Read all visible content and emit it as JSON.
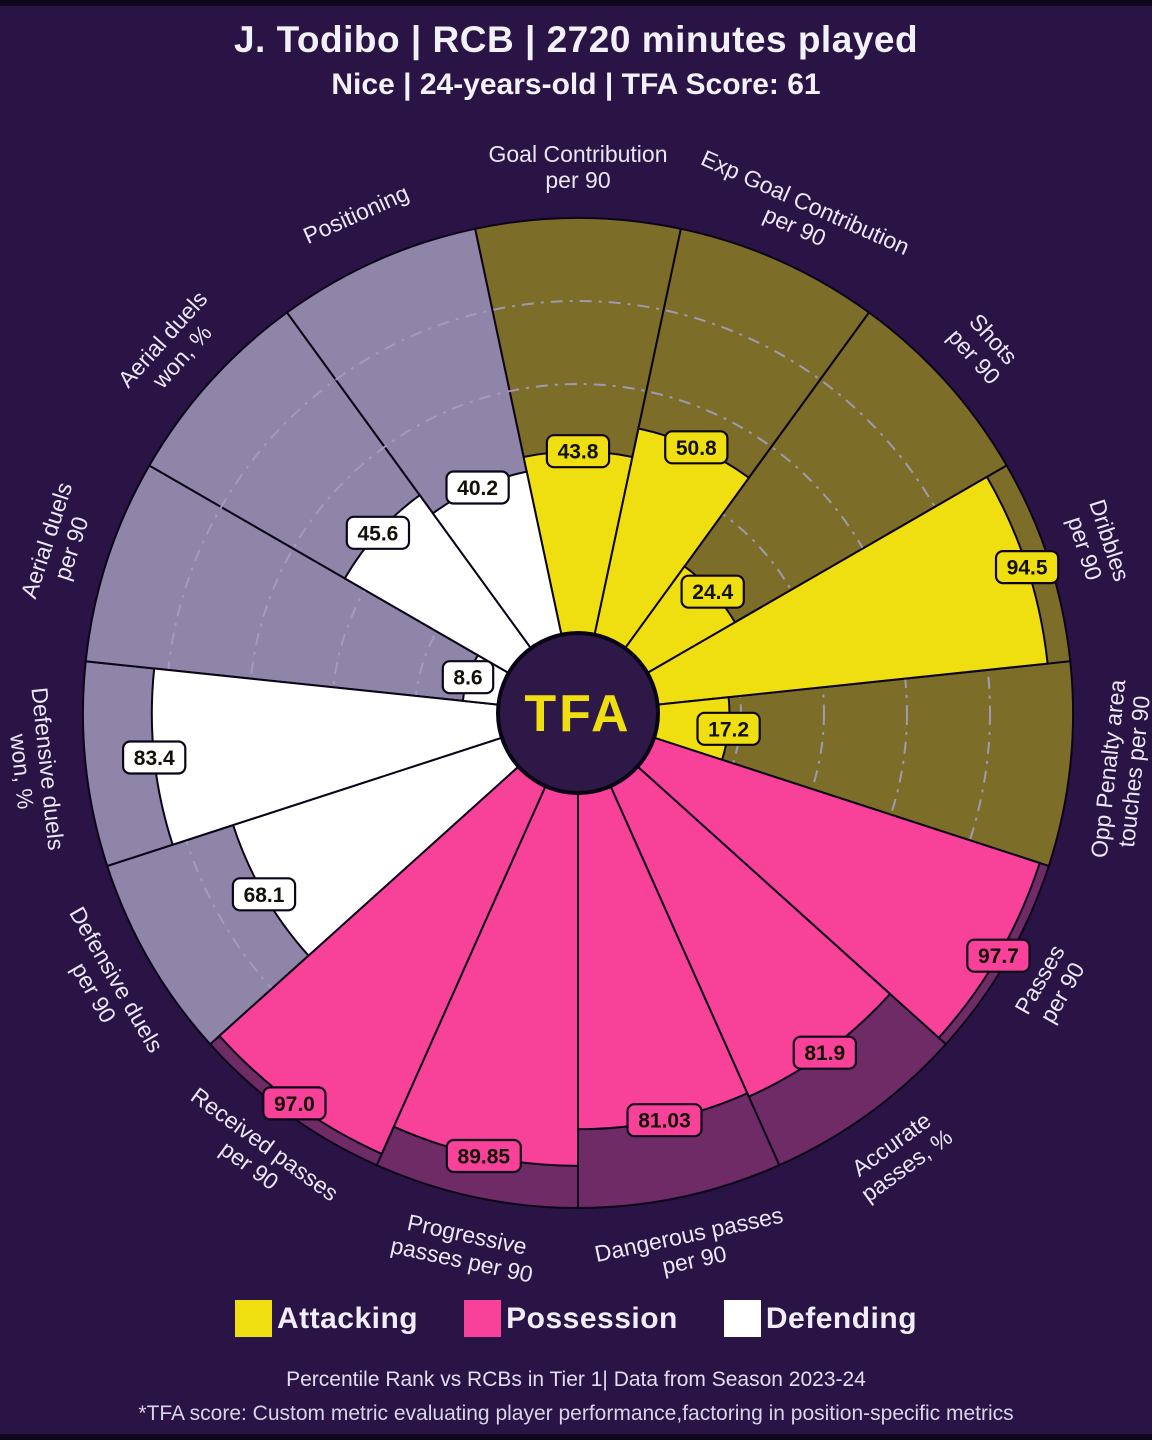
{
  "header": {
    "title": "J. Todibo | RCB | 2720 minutes played",
    "subtitle": "Nice | 24-years-old | TFA Score: 61"
  },
  "center_logo_text": "TFA",
  "legend": {
    "items": [
      {
        "label": "Attacking",
        "color": "#f0df10",
        "key": "attacking"
      },
      {
        "label": "Possession",
        "color": "#f84199",
        "key": "possession"
      },
      {
        "label": "Defending",
        "color": "#ffffff",
        "key": "defending"
      }
    ]
  },
  "footer": {
    "context_line": "Percentile Rank vs RCBs in Tier 1| Data from Season 2023-24",
    "note_line": "*TFA score: Custom metric evaluating player performance,factoring in position-specific metrics"
  },
  "chart_data": {
    "type": "bar",
    "variant": "pizza-polar-percentile",
    "title": "J. Todibo | RCB | 2720 minutes played",
    "subtitle": "Nice | 24-years-old | TFA Score: 61",
    "scale": {
      "min": 0,
      "max": 100
    },
    "rings": [
      20,
      40,
      60,
      80
    ],
    "start_angle_deg": -12,
    "slice_angle_deg": 24,
    "groups": {
      "attacking": {
        "label": "Attacking",
        "fill": "#f0df10",
        "dim": "#7c6e29"
      },
      "possession": {
        "label": "Possession",
        "fill": "#f84199",
        "dim": "#6e2b66"
      },
      "defending": {
        "label": "Defending",
        "fill": "#ffffff",
        "dim": "#8e85a8"
      }
    },
    "slices": [
      {
        "label": "Goal Contribution per 90",
        "lines": [
          "Goal Contribution",
          "per 90"
        ],
        "value": 43.8,
        "display": "43.8",
        "group": "attacking"
      },
      {
        "label": "Exp Goal Contribution per 90",
        "lines": [
          "Exp Goal Contribution",
          "per 90"
        ],
        "value": 50.8,
        "display": "50.8",
        "group": "attacking"
      },
      {
        "label": "Shots per 90",
        "lines": [
          "Shots",
          "per 90"
        ],
        "value": 24.4,
        "display": "24.4",
        "group": "attacking"
      },
      {
        "label": "Dribbles per 90",
        "lines": [
          "Dribbles",
          "per 90"
        ],
        "value": 94.5,
        "display": "94.5",
        "group": "attacking"
      },
      {
        "label": "Opp Penalty area touches per 90",
        "lines": [
          "Opp Penalty area",
          "touches per 90"
        ],
        "value": 17.2,
        "display": "17.2",
        "group": "attacking"
      },
      {
        "label": "Passes per 90",
        "lines": [
          "Passes",
          "per 90"
        ],
        "value": 97.7,
        "display": "97.7",
        "group": "possession"
      },
      {
        "label": "Accurate passes, %",
        "lines": [
          "Accurate",
          "passes, %"
        ],
        "value": 81.9,
        "display": "81.9",
        "group": "possession"
      },
      {
        "label": "Dangerous passes per 90",
        "lines": [
          "Dangerous passes",
          "per 90"
        ],
        "value": 81.03,
        "display": "81.03",
        "group": "possession"
      },
      {
        "label": "Progressive passes per 90",
        "lines": [
          "Progressive",
          "passes per 90"
        ],
        "value": 89.85,
        "display": "89.85",
        "group": "possession"
      },
      {
        "label": "Received passes per 90",
        "lines": [
          "Received passes",
          "per 90"
        ],
        "value": 97.0,
        "display": "97.0",
        "group": "possession"
      },
      {
        "label": "Defensive duels per 90",
        "lines": [
          "Defensive duels",
          "per 90"
        ],
        "value": 68.1,
        "display": "68.1",
        "group": "defending"
      },
      {
        "label": "Defensive duels won, %",
        "lines": [
          "Defensive duels",
          "won, %"
        ],
        "value": 83.4,
        "display": "83.4",
        "group": "defending"
      },
      {
        "label": "Aerial duels per 90",
        "lines": [
          "Aerial duels",
          "per 90"
        ],
        "value": 8.6,
        "display": "8.6",
        "group": "defending"
      },
      {
        "label": "Aerial duels won, %",
        "lines": [
          "Aerial duels",
          "won, %"
        ],
        "value": 45.6,
        "display": "45.6",
        "group": "defending"
      },
      {
        "label": "Positioning",
        "lines": [
          "Positioning"
        ],
        "value": 40.2,
        "display": "40.2",
        "group": "defending"
      }
    ],
    "colors": {
      "background": "#291445",
      "grid": "#a39fc0",
      "slice_edge": "#0c0519",
      "label_text": "#eae6f3",
      "value_text": "#121007",
      "center_circle": "#2d1847",
      "center_circle_edge": "#0a0417",
      "logo_text": "#f0df10"
    },
    "legend_position": "bottom",
    "grid": "dash-dot circles"
  }
}
